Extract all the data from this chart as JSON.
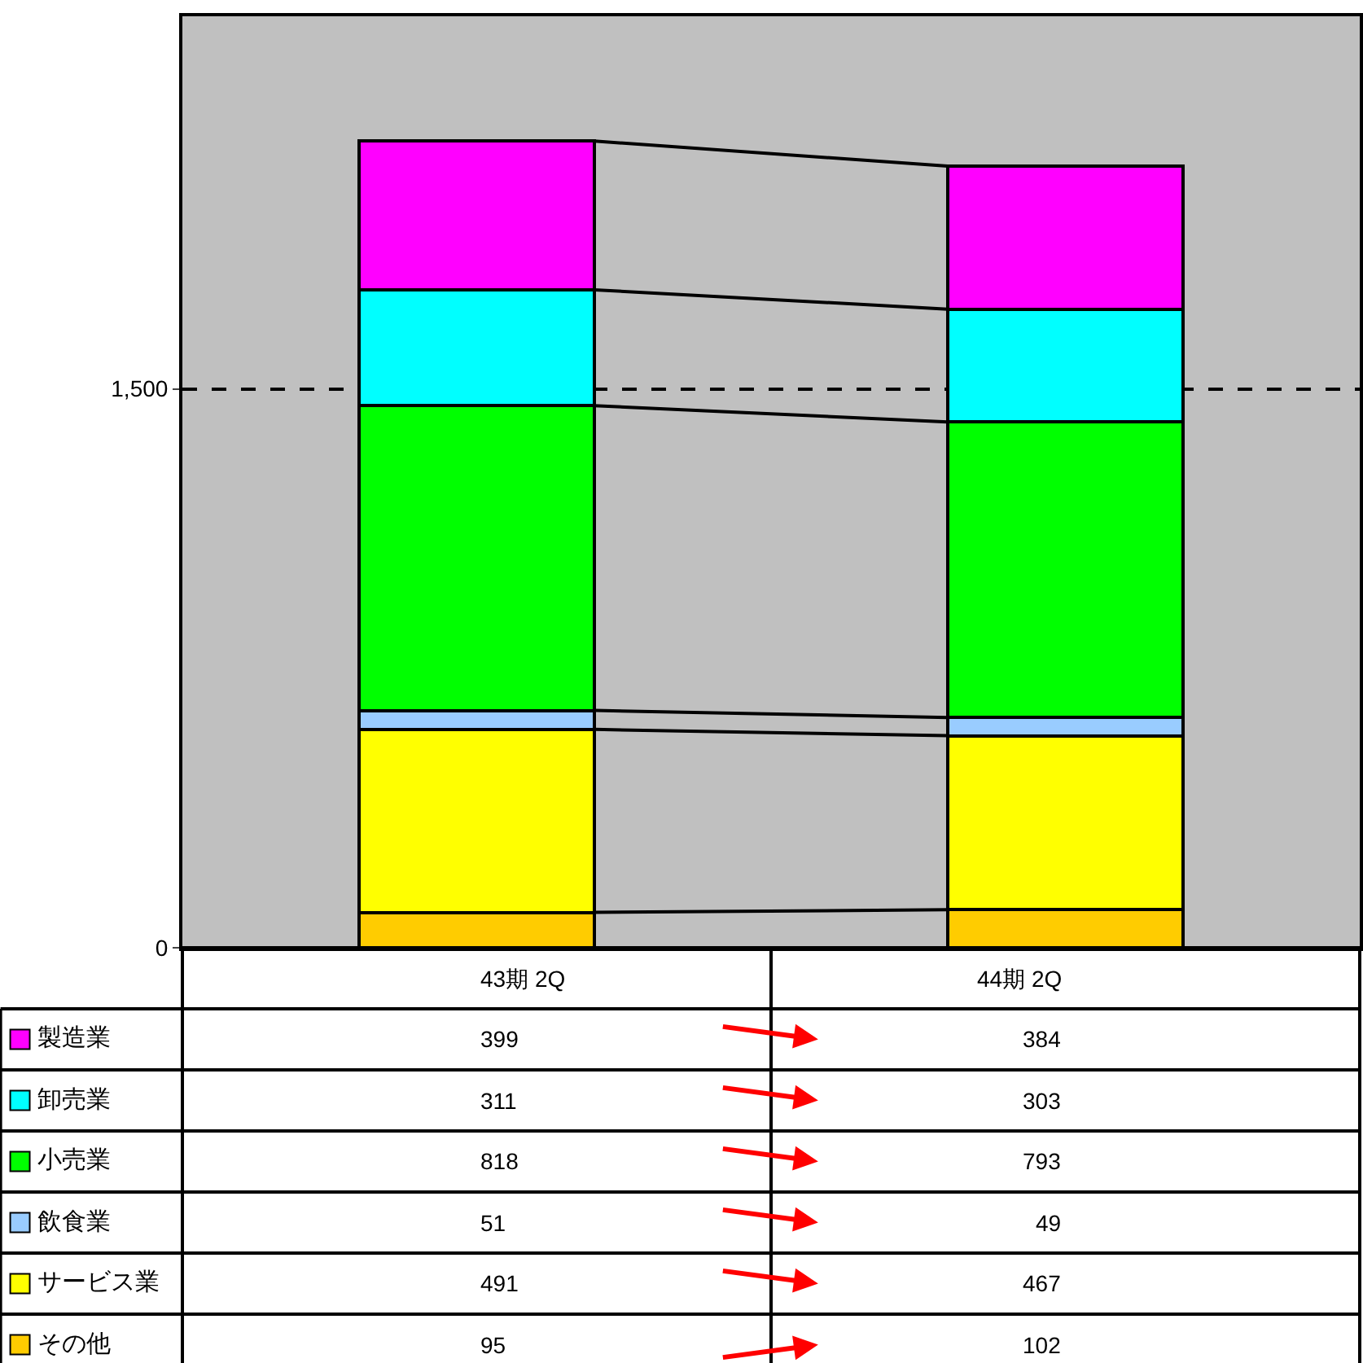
{
  "chart_data": {
    "type": "bar",
    "stacked": true,
    "categories": [
      "43期 2Q",
      "44期 2Q"
    ],
    "series": [
      {
        "name": "その他",
        "color": "#ffcc00",
        "values": [
          95,
          102
        ]
      },
      {
        "name": "サービス業",
        "color": "#ffff00",
        "values": [
          491,
          467
        ]
      },
      {
        "name": "飲食業",
        "color": "#99ccff",
        "values": [
          51,
          49
        ]
      },
      {
        "name": "小売業",
        "color": "#00ff00",
        "values": [
          818,
          793
        ]
      },
      {
        "name": "卸売業",
        "color": "#00ffff",
        "values": [
          311,
          303
        ]
      },
      {
        "name": "製造業",
        "color": "#ff00ff",
        "values": [
          399,
          384
        ]
      }
    ],
    "ylim": [
      0,
      2500
    ],
    "yticks": [
      {
        "value": 0,
        "label": "0"
      },
      {
        "value": 1500,
        "label": "1,500"
      }
    ],
    "grid": "y",
    "legend": "bottom left",
    "tick_labels": "y",
    "data_labels": true
  }
}
